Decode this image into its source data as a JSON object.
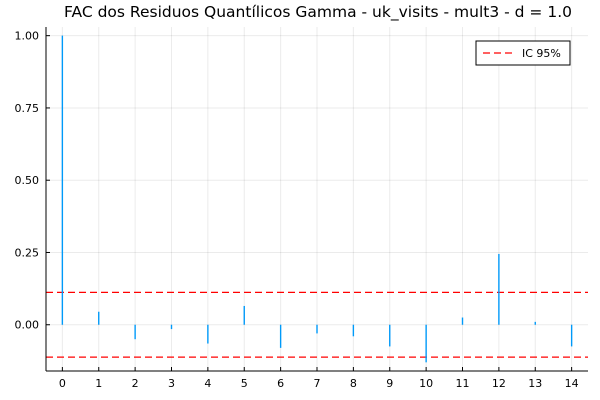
{
  "chart_data": {
    "type": "bar",
    "title": "FAC dos Residuos Quantílicos Gamma - uk_visits - mult3 - d = 1.0",
    "xlabel": "",
    "ylabel": "",
    "x": [
      0,
      1,
      2,
      3,
      4,
      5,
      6,
      7,
      8,
      9,
      10,
      11,
      12,
      13,
      14
    ],
    "values": [
      1.0,
      0.045,
      -0.05,
      -0.015,
      -0.065,
      0.065,
      -0.08,
      -0.03,
      -0.04,
      -0.075,
      -0.13,
      0.025,
      0.245,
      0.01,
      -0.075
    ],
    "xlim": [
      -0.45,
      14.45
    ],
    "ylim": [
      -0.16,
      1.03
    ],
    "x_ticks": [
      "0",
      "1",
      "2",
      "3",
      "4",
      "5",
      "6",
      "7",
      "8",
      "9",
      "10",
      "11",
      "12",
      "13",
      "14"
    ],
    "y_ticks": [
      {
        "value": 0.0,
        "label": "0.00"
      },
      {
        "value": 0.25,
        "label": "0.25"
      },
      {
        "value": 0.5,
        "label": "0.50"
      },
      {
        "value": 0.75,
        "label": "0.75"
      },
      {
        "value": 1.0,
        "label": "1.00"
      }
    ],
    "bar_color": "#009af9",
    "confidence_interval": {
      "name": "IC 95%",
      "upper": 0.112,
      "lower": -0.112,
      "color": "#ff0000",
      "style": "dashed"
    },
    "grid": true,
    "legend_position": "top-right"
  }
}
